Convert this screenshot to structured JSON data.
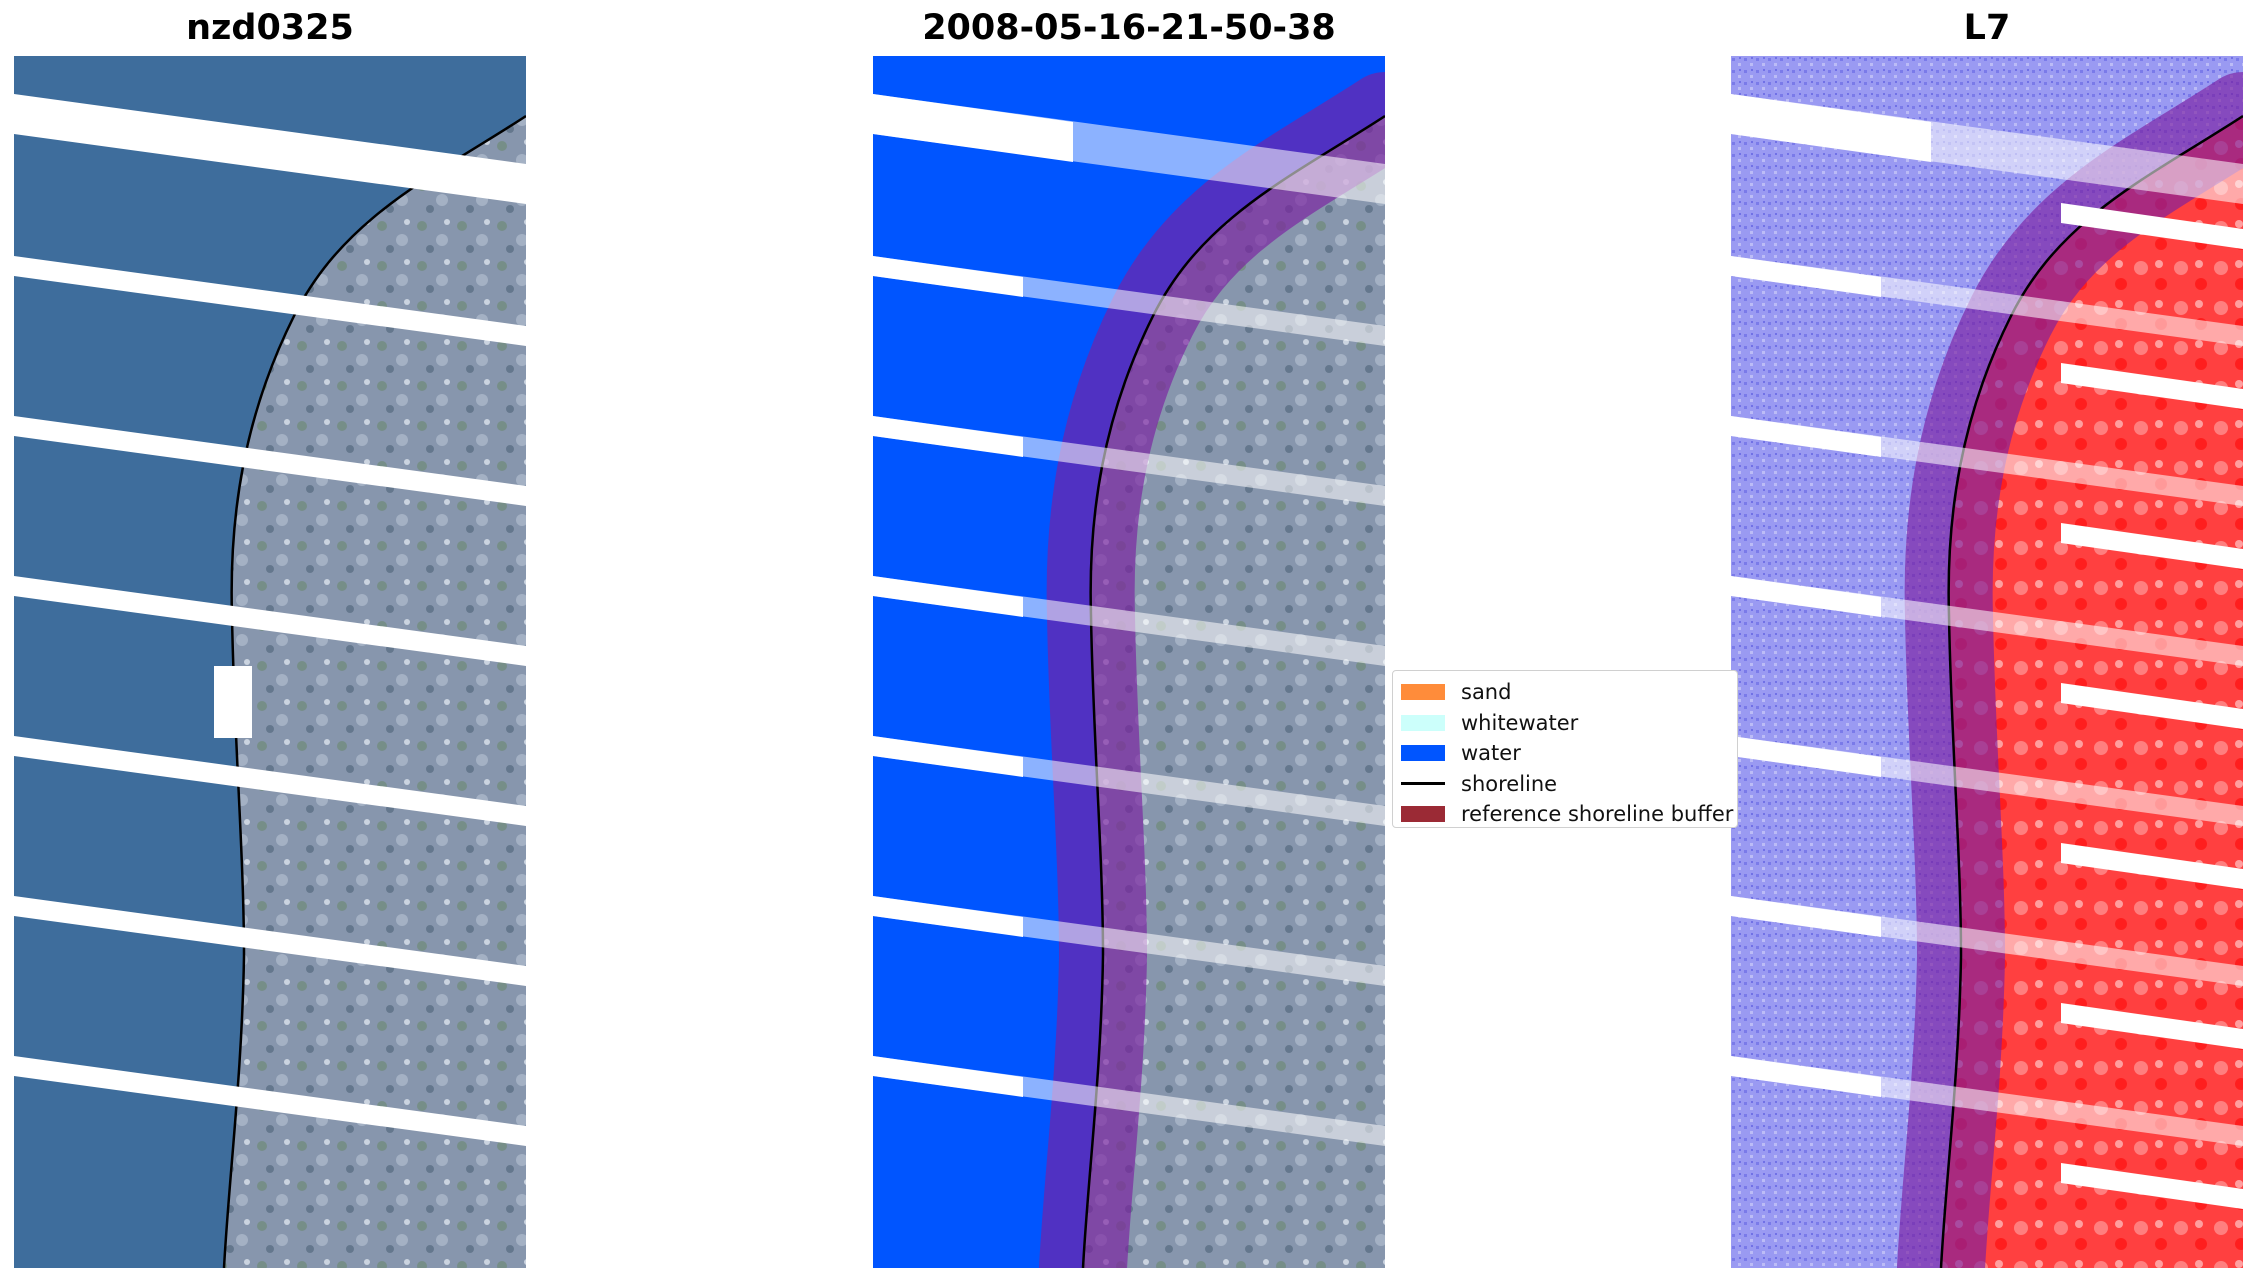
{
  "panels": [
    {
      "title": "nzd0325",
      "kind": "rgb"
    },
    {
      "title": "2008-05-16-21-50-38",
      "kind": "classified"
    },
    {
      "title": "L7",
      "kind": "index"
    }
  ],
  "legend": {
    "items": [
      {
        "label": "sand",
        "color": "#ff8c3a",
        "type": "patch"
      },
      {
        "label": "whitewater",
        "color": "#ccfffb",
        "type": "patch"
      },
      {
        "label": "water",
        "color": "#0055ff",
        "type": "patch"
      },
      {
        "label": "shoreline",
        "color": "#000000",
        "type": "line"
      },
      {
        "label": "reference shoreline buffer",
        "color": "#9b2a35",
        "type": "patch"
      }
    ]
  },
  "colors": {
    "ocean_rgb": "#3e6d9c",
    "land_rgb": "#7d8fa8",
    "water_class": "#0055ff",
    "buffer_overlay": "#7b1fa2",
    "index_water": "#8f8ff0",
    "index_land": "#ff3030",
    "shoreline": "#000000",
    "nodata_stripe": "#ffffff"
  }
}
